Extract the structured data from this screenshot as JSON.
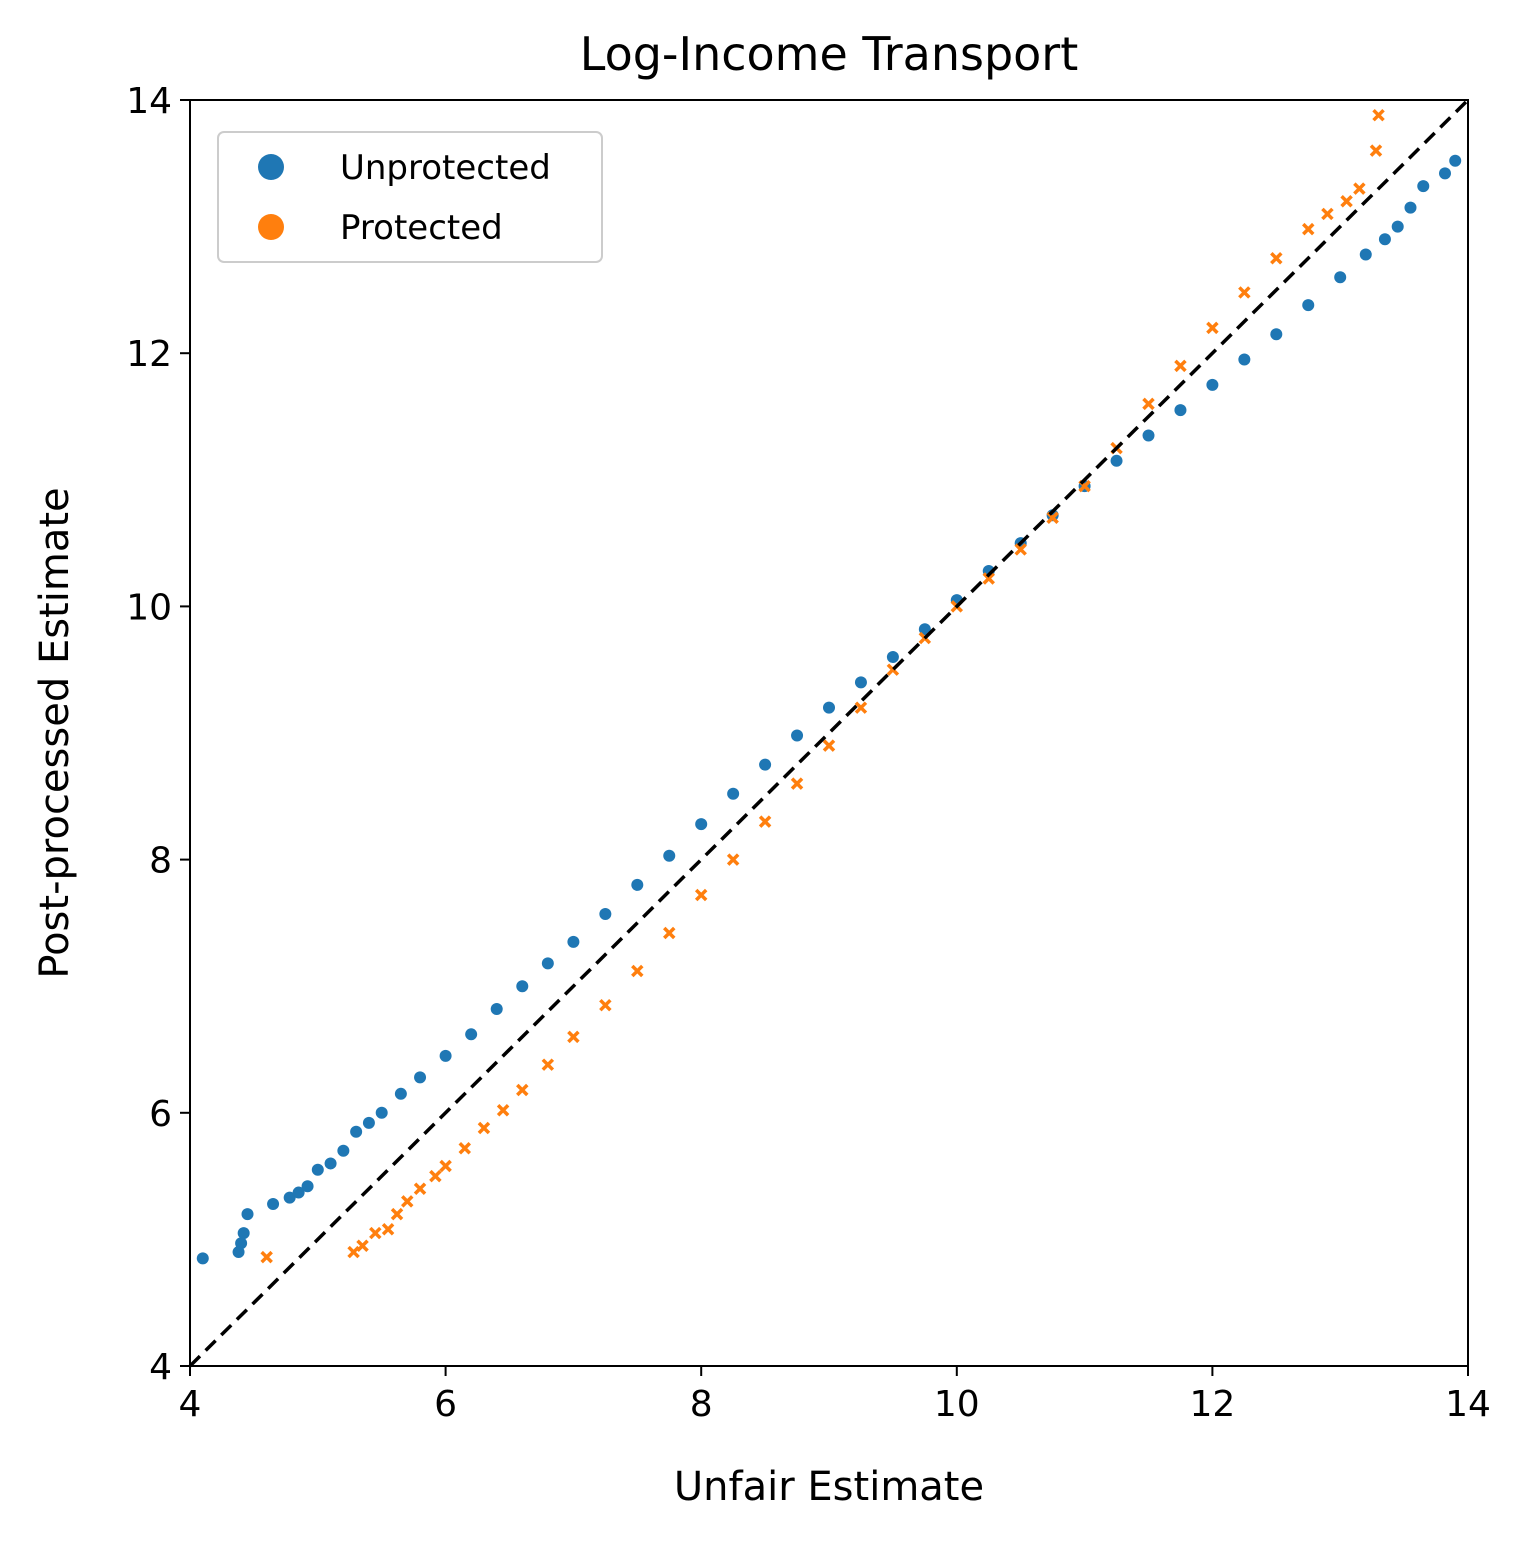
{
  "chart_data": {
    "type": "scatter",
    "title": "Log-Income Transport",
    "xlabel": "Unfair Estimate",
    "ylabel": "Post-processed Estimate",
    "xlim": [
      4,
      14
    ],
    "ylim": [
      4,
      14
    ],
    "xticks": [
      4,
      6,
      8,
      10,
      12,
      14
    ],
    "yticks": [
      4,
      6,
      8,
      10,
      12,
      14
    ],
    "legend": "upper left",
    "diagonal": true,
    "series": [
      {
        "name": "Unprotected",
        "color": "#1f77b4",
        "marker": "o",
        "x": [
          4.1,
          4.38,
          4.4,
          4.42,
          4.45,
          4.65,
          4.78,
          4.85,
          4.92,
          5.0,
          5.1,
          5.2,
          5.3,
          5.4,
          5.5,
          5.65,
          5.8,
          6.0,
          6.2,
          6.4,
          6.6,
          6.8,
          7.0,
          7.25,
          7.5,
          7.75,
          8.0,
          8.25,
          8.5,
          8.75,
          9.0,
          9.25,
          9.5,
          9.75,
          10.0,
          10.25,
          10.5,
          10.75,
          11.0,
          11.25,
          11.5,
          11.75,
          12.0,
          12.25,
          12.5,
          12.75,
          13.0,
          13.2,
          13.35,
          13.45,
          13.55,
          13.65,
          13.82,
          13.9
        ],
        "y": [
          4.85,
          4.9,
          4.97,
          5.05,
          5.2,
          5.28,
          5.33,
          5.37,
          5.42,
          5.55,
          5.6,
          5.7,
          5.85,
          5.92,
          6.0,
          6.15,
          6.28,
          6.45,
          6.62,
          6.82,
          7.0,
          7.18,
          7.35,
          7.57,
          7.8,
          8.03,
          8.28,
          8.52,
          8.75,
          8.98,
          9.2,
          9.4,
          9.6,
          9.82,
          10.05,
          10.28,
          10.5,
          10.72,
          10.95,
          11.15,
          11.35,
          11.55,
          11.75,
          11.95,
          12.15,
          12.38,
          12.6,
          12.78,
          12.9,
          13.0,
          13.15,
          13.32,
          13.42,
          13.52
        ]
      },
      {
        "name": "Protected",
        "color": "#ff7f0e",
        "marker": "x",
        "x": [
          4.6,
          5.28,
          5.35,
          5.45,
          5.55,
          5.62,
          5.7,
          5.8,
          5.92,
          6.0,
          6.15,
          6.3,
          6.45,
          6.6,
          6.8,
          7.0,
          7.25,
          7.5,
          7.75,
          8.0,
          8.25,
          8.5,
          8.75,
          9.0,
          9.25,
          9.5,
          9.75,
          10.0,
          10.25,
          10.5,
          10.75,
          11.0,
          11.25,
          11.5,
          11.75,
          12.0,
          12.25,
          12.5,
          12.75,
          12.9,
          13.05,
          13.15,
          13.28,
          13.3
        ],
        "y": [
          4.86,
          4.9,
          4.95,
          5.05,
          5.08,
          5.2,
          5.3,
          5.4,
          5.5,
          5.58,
          5.72,
          5.88,
          6.02,
          6.18,
          6.38,
          6.6,
          6.85,
          7.12,
          7.42,
          7.72,
          8.0,
          8.3,
          8.6,
          8.9,
          9.2,
          9.5,
          9.75,
          10.0,
          10.22,
          10.45,
          10.7,
          10.95,
          11.25,
          11.6,
          11.9,
          12.2,
          12.48,
          12.75,
          12.98,
          13.1,
          13.2,
          13.3,
          13.6,
          13.88
        ]
      }
    ]
  }
}
